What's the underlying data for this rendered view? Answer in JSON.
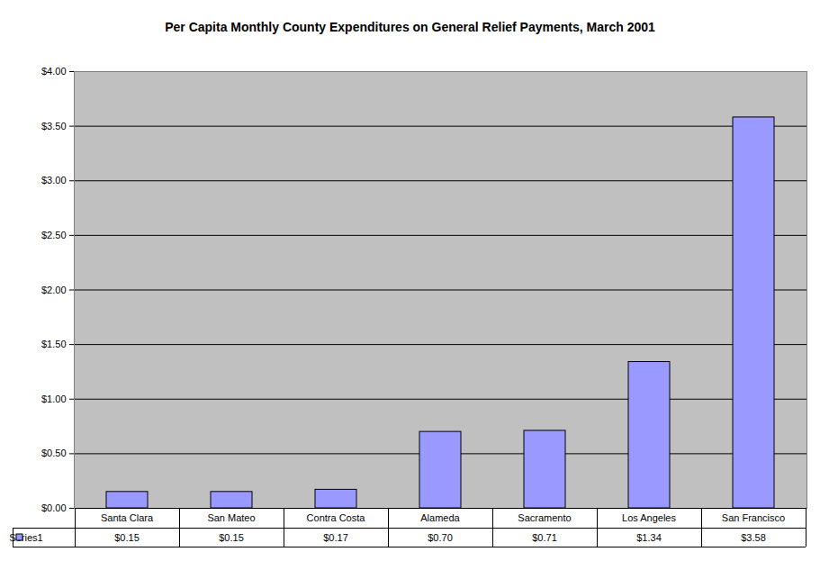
{
  "chart_data": {
    "type": "bar",
    "title": "Per Capita Monthly County Expenditures on General Relief Payments, March 2001",
    "categories": [
      "Santa Clara",
      "San Mateo",
      "Contra Costa",
      "Alameda",
      "Sacramento",
      "Los Angeles",
      "San Francisco"
    ],
    "series": [
      {
        "name": "Series1",
        "color": "#9999ff",
        "values": [
          0.15,
          0.15,
          0.17,
          0.7,
          0.71,
          1.34,
          3.58
        ],
        "value_labels": [
          "$0.15",
          "$0.15",
          "$0.17",
          "$0.70",
          "$0.71",
          "$1.34",
          "$3.58"
        ]
      }
    ],
    "ylim": [
      0,
      4
    ],
    "yticks": [
      {
        "value": 0,
        "label": "$0.00"
      },
      {
        "value": 0.5,
        "label": "$0.50"
      },
      {
        "value": 1,
        "label": "$1.00"
      },
      {
        "value": 1.5,
        "label": "$1.50"
      },
      {
        "value": 2,
        "label": "$2.00"
      },
      {
        "value": 2.5,
        "label": "$2.50"
      },
      {
        "value": 3,
        "label": "$3.00"
      },
      {
        "value": 3.5,
        "label": "$3.50"
      },
      {
        "value": 4,
        "label": "$4.00"
      }
    ],
    "grid": true
  }
}
